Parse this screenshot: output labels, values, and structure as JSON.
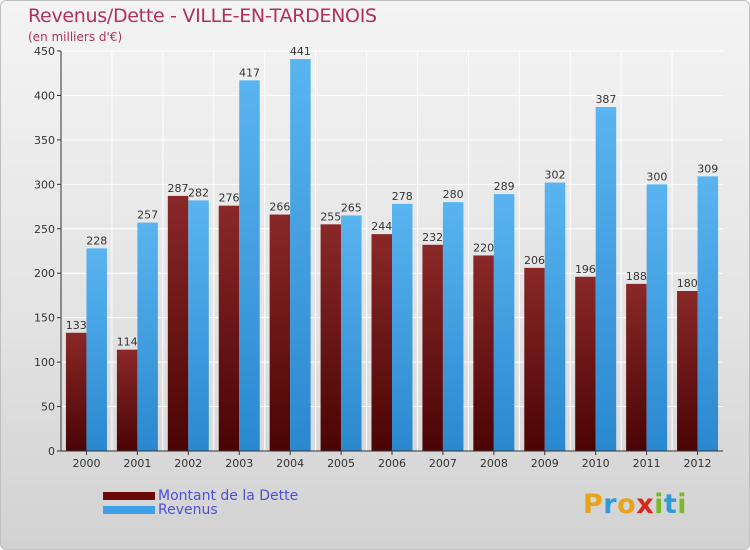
{
  "title": "Revenus/Dette - VILLE-EN-TARDENOIS",
  "subtitle": "(en milliers d'€)",
  "logo": {
    "letters": [
      "P",
      "r",
      "o",
      "x",
      "i",
      "t",
      "i"
    ],
    "colors": [
      "#e8a21c",
      "#2f9ad9",
      "#e8a21c",
      "#d8281e",
      "#7ab82a",
      "#2f9ad9",
      "#7ab82a"
    ]
  },
  "legend": [
    {
      "label": "Montant de la Dette",
      "color": "#6b0a0a"
    },
    {
      "label": "Revenus",
      "color": "#3fa2e8"
    }
  ],
  "chart_data": {
    "type": "bar",
    "title": "Revenus/Dette - VILLE-EN-TARDENOIS",
    "subtitle": "(en milliers d'€)",
    "categories": [
      "2000",
      "2001",
      "2002",
      "2003",
      "2004",
      "2005",
      "2006",
      "2007",
      "2008",
      "2009",
      "2010",
      "2011",
      "2012"
    ],
    "series": [
      {
        "name": "Montant de la Dette",
        "color": "#7a1515",
        "values": [
          133,
          114,
          287,
          276,
          266,
          255,
          244,
          232,
          220,
          206,
          196,
          188,
          180
        ]
      },
      {
        "name": "Revenus",
        "color": "#3fa2e8",
        "values": [
          228,
          257,
          282,
          417,
          441,
          265,
          278,
          280,
          289,
          302,
          387,
          300,
          309
        ]
      }
    ],
    "ylim": [
      0,
      450
    ],
    "yticks": [
      0,
      50,
      100,
      150,
      200,
      250,
      300,
      350,
      400,
      450
    ],
    "grid": true,
    "legend_position": "bottom-left"
  }
}
